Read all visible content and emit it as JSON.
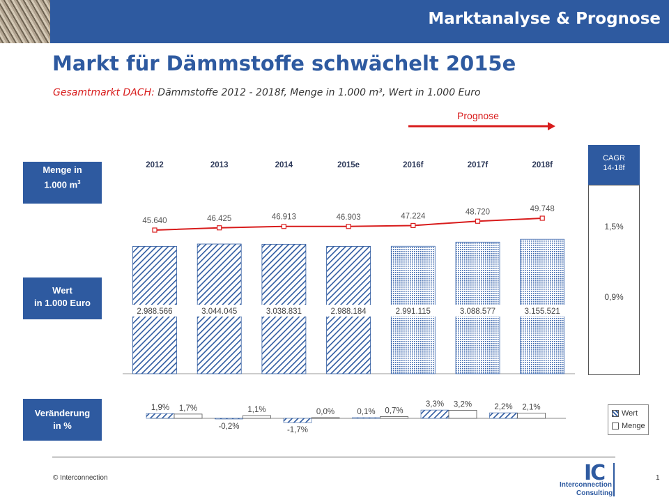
{
  "header": {
    "title": "Marktanalyse & Prognose"
  },
  "main_title": "Markt für Dämmstoffe schwächelt 2015e",
  "subtitle": {
    "highlight": "Gesamtmarkt DACH:",
    "rest": " Dämmstoffe 2012 - 2018f, Menge in 1.000 m³, Wert in 1.000 Euro"
  },
  "prognose_label": "Prognose",
  "row_labels": {
    "menge_line1": "Menge in",
    "menge_line2": "1.000 m",
    "menge_sup": "3",
    "wert_line1": "Wert",
    "wert_line2": "in 1.000 Euro",
    "veraenderung_line1": "Veränderung",
    "veraenderung_line2": "in %"
  },
  "cagr": {
    "title_line1": "CAGR",
    "title_line2": "14-18f",
    "menge": "1,5%",
    "wert": "0,9%"
  },
  "legend": {
    "wert": "Wert",
    "menge": "Menge"
  },
  "footer": {
    "copyright": "© Interconnection",
    "page": "1",
    "logo_ic": "IC",
    "logo_line1": "Interconnection",
    "logo_line2": "Consulting"
  },
  "colors": {
    "brand_blue": "#2e5aa0",
    "line_red": "#d81c1c",
    "bar_forecast": "#3d68ad"
  },
  "chart_data": {
    "type": "bar",
    "categories": [
      "2012",
      "2013",
      "2014",
      "2015e",
      "2016f",
      "2017f",
      "2018f"
    ],
    "forecast_from_index": 4,
    "series": [
      {
        "name": "Wert",
        "values": [
          2988566,
          3044045,
          3038831,
          2988184,
          2991115,
          3088577,
          3155521
        ],
        "labels": [
          "2.988.566",
          "3.044.045",
          "3.038.831",
          "2.988.184",
          "2.991.115",
          "3.088.577",
          "3.155.521"
        ]
      },
      {
        "name": "Menge",
        "values": [
          45640,
          46425,
          46913,
          46903,
          47224,
          48720,
          49748
        ],
        "labels": [
          "45.640",
          "46.425",
          "46.913",
          "46.903",
          "47.224",
          "48.720",
          "49.748"
        ]
      }
    ],
    "change": {
      "wert": [
        1.9,
        -0.2,
        -1.7,
        0.1,
        3.3,
        2.2
      ],
      "wert_labels": [
        "1,9%",
        "-0,2%",
        "-1,7%",
        "0,1%",
        "3,3%",
        "2,2%"
      ],
      "menge": [
        1.7,
        1.1,
        0.0,
        0.7,
        3.2,
        2.1
      ],
      "menge_labels": [
        "1,7%",
        "1,1%",
        "0,0%",
        "0,7%",
        "3,2%",
        "2,1%"
      ]
    }
  }
}
